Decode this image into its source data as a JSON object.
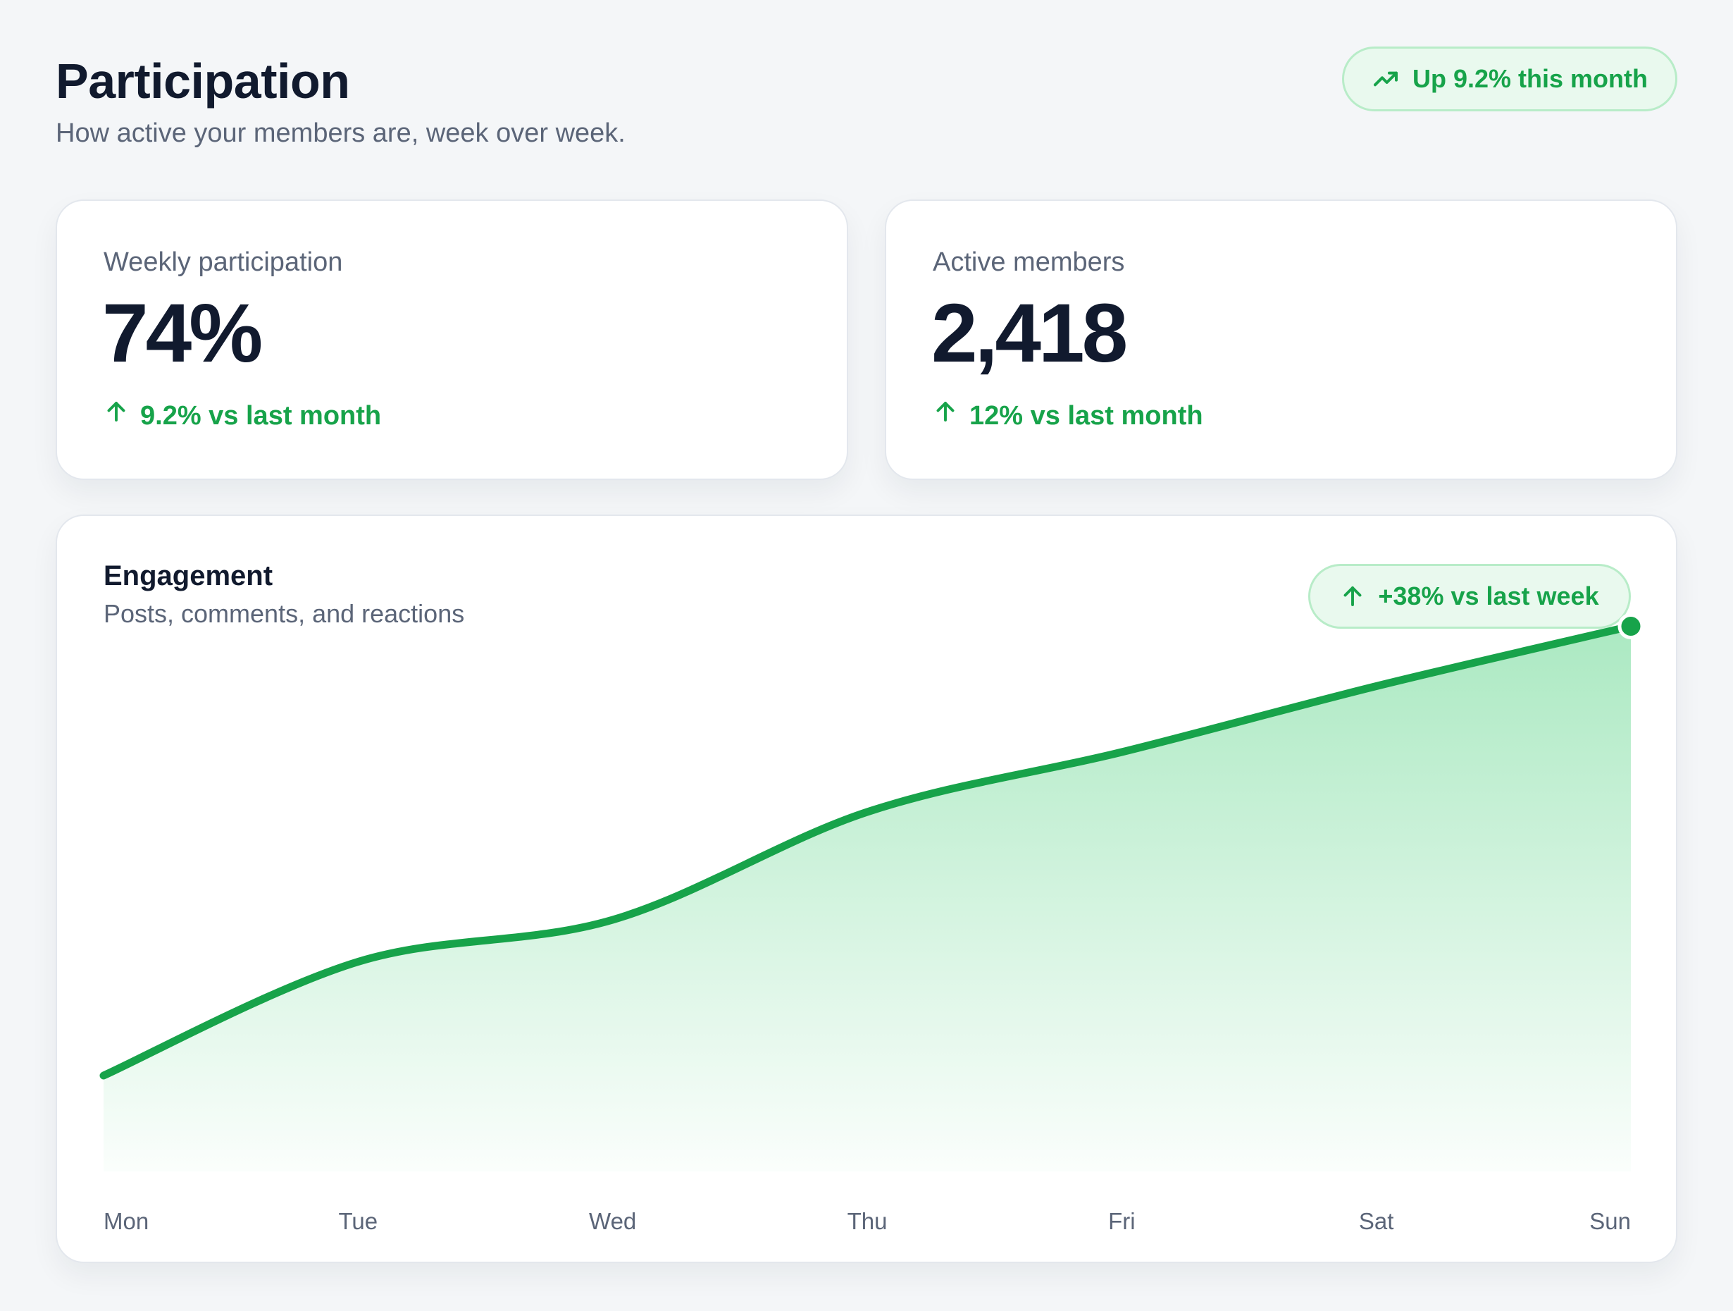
{
  "header": {
    "title": "Participation",
    "subtitle": "How active your members are, week over week.",
    "trend_badge": "Up 9.2% this month",
    "trend_icon": "trending-up-icon"
  },
  "stats": [
    {
      "label": "Weekly participation",
      "value": "74%",
      "delta": "9.2% vs last month",
      "delta_icon": "arrow-up-icon"
    },
    {
      "label": "Active members",
      "value": "2,418",
      "delta": "12% vs last month",
      "delta_icon": "arrow-up-icon"
    }
  ],
  "engagement": {
    "title": "Engagement",
    "subtitle": "Posts, comments, and reactions",
    "badge": "+38% vs last week",
    "badge_icon": "arrow-up-icon"
  },
  "colors": {
    "accent": "#17a34a",
    "badge_bg": "#e9f9ee",
    "text_primary": "#111a2e",
    "text_muted": "#5b6578"
  },
  "chart_data": {
    "type": "area",
    "x": [
      "Mon",
      "Tue",
      "Wed",
      "Thu",
      "Fri",
      "Sat",
      "Sun"
    ],
    "y": [
      16,
      35,
      42,
      60,
      70,
      81,
      91
    ],
    "ylim": [
      0,
      100
    ],
    "grid": false,
    "legend": "none",
    "highlight_last_point": true
  }
}
